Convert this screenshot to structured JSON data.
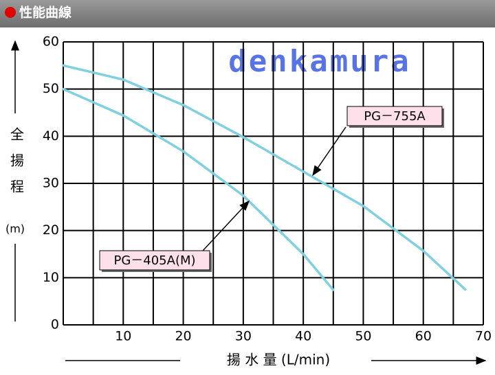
{
  "header": {
    "title": "性能曲線"
  },
  "chart_data": {
    "type": "line",
    "watermark": "denkamura",
    "x_label": "揚 水 量 (L/min)",
    "y_label": "全揚程",
    "y_unit": "(m)",
    "xlim": [
      0,
      70
    ],
    "ylim": [
      0,
      60
    ],
    "xticks": [
      10,
      20,
      30,
      40,
      50,
      60,
      70
    ],
    "yticks": [
      0,
      10,
      20,
      30,
      40,
      50,
      60
    ],
    "xgrid": [
      0,
      5,
      10,
      15,
      20,
      25,
      30,
      35,
      40,
      45,
      50,
      55,
      60,
      65,
      70
    ],
    "grid": true,
    "series": [
      {
        "name": "PG－755A",
        "color": "#80d0e0",
        "x": [
          0,
          10,
          20,
          30,
          40,
          50,
          60,
          67
        ],
        "values": [
          55,
          52,
          46.6,
          39.8,
          32.5,
          25.2,
          15.7,
          7.5
        ]
      },
      {
        "name": "PG－405A(M)",
        "color": "#80d0e0",
        "x": [
          0,
          10,
          20,
          30,
          40,
          45
        ],
        "values": [
          50,
          44.4,
          36.8,
          27.4,
          15,
          7.4
        ]
      }
    ]
  }
}
